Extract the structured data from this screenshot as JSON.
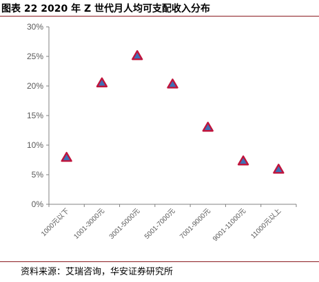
{
  "figure": {
    "title": "图表 22 2020 年 Z 世代月人均可支配收入分布",
    "source": "资料来源：艾瑞咨询，华安证券研究所"
  },
  "chart_data": {
    "type": "scatter",
    "marker": "triangle",
    "marker_fill": "#3f6fb5",
    "marker_edge": "#c0143c",
    "categories": [
      "1000元以下",
      "1001-3000元",
      "3001-5000元",
      "5001-7000元",
      "7001-9000元",
      "9001-11000元",
      "11000元以上"
    ],
    "values": [
      7.9,
      20.5,
      25.1,
      20.3,
      13.0,
      7.3,
      5.9
    ],
    "y_ticks": [
      "0%",
      "5%",
      "10%",
      "15%",
      "20%",
      "25%",
      "30%"
    ],
    "ylim": [
      0,
      30
    ],
    "title": "",
    "xlabel": "",
    "ylabel": "",
    "grid": false
  }
}
